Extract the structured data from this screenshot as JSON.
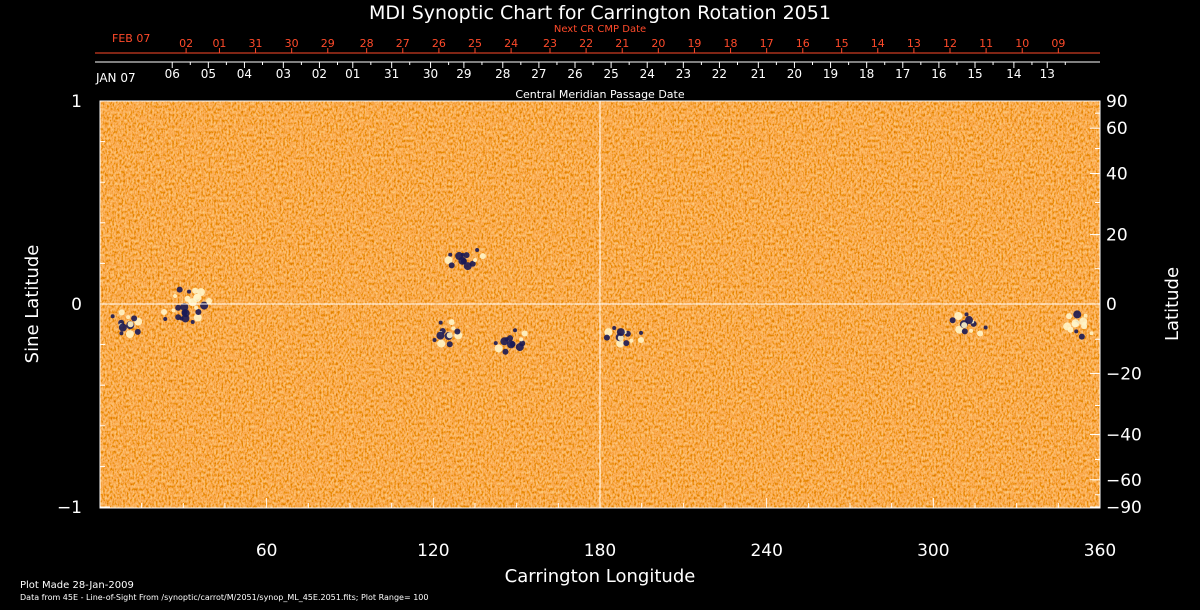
{
  "chart_data": {
    "type": "heatmap",
    "title": "MDI Synoptic Chart for Carrington Rotation 2051",
    "xlabel": "Carrington Longitude",
    "ylabel_left": "Sine Latitude",
    "ylabel_right": "Latitude",
    "top_label_primary": "Central Meridian Passage Date",
    "top_label_secondary": "Next CR CMP Date",
    "xlim": [
      0,
      360
    ],
    "ylim": [
      -1,
      1
    ],
    "grid": "crosshair at longitude 180 and latitude 0",
    "x_ticks": [
      60,
      120,
      180,
      240,
      300,
      360
    ],
    "y_ticks_left": [
      {
        "value": 1,
        "label": "1"
      },
      {
        "value": 0,
        "label": "0"
      },
      {
        "value": -1,
        "label": "−1"
      }
    ],
    "y_ticks_right": [
      {
        "value": 90,
        "label": "90"
      },
      {
        "value": 60,
        "label": "60"
      },
      {
        "value": 40,
        "label": "40"
      },
      {
        "value": 20,
        "label": "20"
      },
      {
        "value": 0,
        "label": "0"
      },
      {
        "value": -20,
        "label": "−20"
      },
      {
        "value": -40,
        "label": "−40"
      },
      {
        "value": -60,
        "label": "−60"
      },
      {
        "value": -90,
        "label": "−90"
      }
    ],
    "date_month_label": "JAN 07",
    "date_ticks": [
      {
        "label": "06",
        "longitude": 26
      },
      {
        "label": "05",
        "longitude": 39
      },
      {
        "label": "04",
        "longitude": 52
      },
      {
        "label": "03",
        "longitude": 66
      },
      {
        "label": "02",
        "longitude": 79
      },
      {
        "label": "01",
        "longitude": 91
      },
      {
        "label": "31",
        "longitude": 105
      },
      {
        "label": "30",
        "longitude": 119
      },
      {
        "label": "29",
        "longitude": 131
      },
      {
        "label": "28",
        "longitude": 145
      },
      {
        "label": "27",
        "longitude": 158
      },
      {
        "label": "26",
        "longitude": 171
      },
      {
        "label": "25",
        "longitude": 184
      },
      {
        "label": "24",
        "longitude": 197
      },
      {
        "label": "23",
        "longitude": 210
      },
      {
        "label": "22",
        "longitude": 223
      },
      {
        "label": "21",
        "longitude": 237
      },
      {
        "label": "20",
        "longitude": 250
      },
      {
        "label": "19",
        "longitude": 263
      },
      {
        "label": "18",
        "longitude": 276
      },
      {
        "label": "17",
        "longitude": 289
      },
      {
        "label": "16",
        "longitude": 302
      },
      {
        "label": "15",
        "longitude": 315
      },
      {
        "label": "14",
        "longitude": 329
      },
      {
        "label": "13",
        "longitude": 341
      }
    ],
    "next_month_label": "FEB 07",
    "next_date_ticks": [
      {
        "label": "02",
        "longitude": 31
      },
      {
        "label": "01",
        "longitude": 43
      },
      {
        "label": "31",
        "longitude": 56
      },
      {
        "label": "30",
        "longitude": 69
      },
      {
        "label": "29",
        "longitude": 82
      },
      {
        "label": "28",
        "longitude": 96
      },
      {
        "label": "27",
        "longitude": 109
      },
      {
        "label": "26",
        "longitude": 122
      },
      {
        "label": "25",
        "longitude": 135
      },
      {
        "label": "24",
        "longitude": 148
      },
      {
        "label": "23",
        "longitude": 162
      },
      {
        "label": "22",
        "longitude": 175
      },
      {
        "label": "21",
        "longitude": 188
      },
      {
        "label": "20",
        "longitude": 201
      },
      {
        "label": "19",
        "longitude": 214
      },
      {
        "label": "18",
        "longitude": 227
      },
      {
        "label": "17",
        "longitude": 240
      },
      {
        "label": "16",
        "longitude": 253
      },
      {
        "label": "15",
        "longitude": 267
      },
      {
        "label": "14",
        "longitude": 280
      },
      {
        "label": "13",
        "longitude": 293
      },
      {
        "label": "12",
        "longitude": 306
      },
      {
        "label": "11",
        "longitude": 319
      },
      {
        "label": "10",
        "longitude": 332
      },
      {
        "label": "09",
        "longitude": 345
      }
    ],
    "active_regions": [
      {
        "lon": 30,
        "sinlat": -0.05,
        "polarity": "negative"
      },
      {
        "lon": 34,
        "sinlat": 0.03,
        "polarity": "positive"
      },
      {
        "lon": 10,
        "sinlat": -0.1,
        "polarity": "mixed"
      },
      {
        "lon": 125,
        "sinlat": -0.15,
        "polarity": "mixed"
      },
      {
        "lon": 148,
        "sinlat": -0.19,
        "polarity": "negative"
      },
      {
        "lon": 131,
        "sinlat": 0.22,
        "polarity": "negative"
      },
      {
        "lon": 188,
        "sinlat": -0.16,
        "polarity": "mixed"
      },
      {
        "lon": 312,
        "sinlat": -0.1,
        "polarity": "mixed"
      },
      {
        "lon": 352,
        "sinlat": -0.1,
        "polarity": "positive"
      }
    ],
    "colors": {
      "background": "#000000",
      "map_base": "#e8471a",
      "positive": "#fff4c8",
      "negative": "#1a1a55",
      "axis": "#ffffff",
      "date_secondary": "#ff4a2a"
    }
  },
  "footer": {
    "line1": "Plot Made 28-Jan-2009",
    "line2": "Data from 45E - Line-of-Sight From /synoptic/carrot/M/2051/synop_ML_45E.2051.fits; Plot Range= 100"
  }
}
